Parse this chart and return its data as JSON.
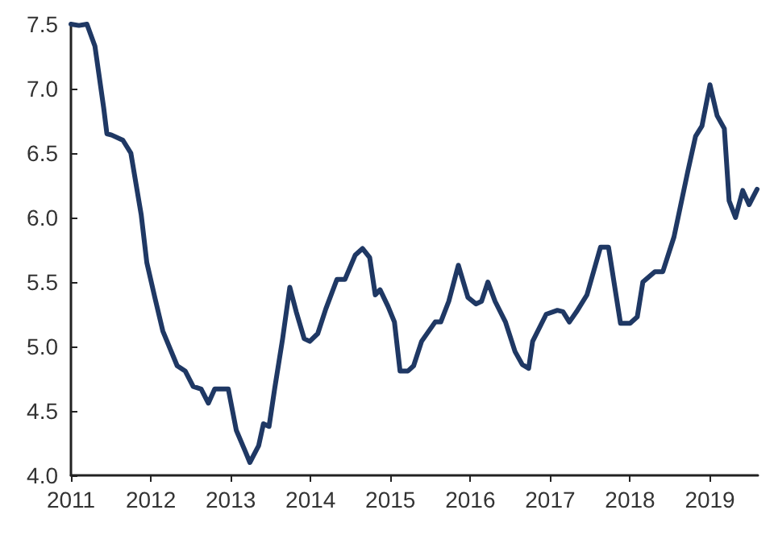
{
  "chart_data": {
    "type": "line",
    "xlim": [
      2011,
      2019.6
    ],
    "xticks": [
      2011,
      2012,
      2013,
      2014,
      2015,
      2016,
      2017,
      2018,
      2019
    ],
    "ylim": [
      4.0,
      7.5
    ],
    "yticks": [
      {
        "value": 4.0,
        "label": "4.0"
      },
      {
        "value": 4.5,
        "label": "4.5"
      },
      {
        "value": 5.0,
        "label": "5.0"
      },
      {
        "value": 5.5,
        "label": "5.5"
      },
      {
        "value": 6.0,
        "label": "6.0"
      },
      {
        "value": 6.5,
        "label": "6.5"
      },
      {
        "value": 7.0,
        "label": "7.0"
      },
      {
        "value": 7.5,
        "label": "7.5"
      }
    ],
    "grid": false,
    "marker": "none",
    "line_style": "solid",
    "series": [
      {
        "color": "#1f3864",
        "x": [
          2011.0,
          2011.1,
          2011.2,
          2011.3,
          2011.41,
          2011.45,
          2011.51,
          2011.65,
          2011.75,
          2011.88,
          2011.95,
          2012.05,
          2012.15,
          2012.33,
          2012.43,
          2012.53,
          2012.63,
          2012.72,
          2012.8,
          2012.97,
          2013.07,
          2013.18,
          2013.24,
          2013.35,
          2013.41,
          2013.48,
          2013.55,
          2013.65,
          2013.74,
          2013.82,
          2013.92,
          2013.99,
          2014.09,
          2014.19,
          2014.33,
          2014.43,
          2014.56,
          2014.65,
          2014.74,
          2014.81,
          2014.87,
          2014.97,
          2015.05,
          2015.12,
          2015.22,
          2015.29,
          2015.39,
          2015.56,
          2015.63,
          2015.73,
          2015.85,
          2015.97,
          2016.07,
          2016.14,
          2016.22,
          2016.31,
          2016.44,
          2016.56,
          2016.65,
          2016.73,
          2016.78,
          2016.95,
          2017.09,
          2017.16,
          2017.24,
          2017.33,
          2017.46,
          2017.63,
          2017.73,
          2017.88,
          2018.0,
          2018.09,
          2018.16,
          2018.31,
          2018.41,
          2018.55,
          2018.72,
          2018.82,
          2018.9,
          2019.0,
          2019.09,
          2019.18,
          2019.24,
          2019.32,
          2019.41,
          2019.49,
          2019.59
        ],
        "values": [
          7.5,
          7.49,
          7.5,
          7.33,
          6.85,
          6.65,
          6.64,
          6.6,
          6.5,
          6.02,
          5.65,
          5.38,
          5.12,
          4.85,
          4.81,
          4.69,
          4.67,
          4.56,
          4.67,
          4.67,
          4.35,
          4.19,
          4.1,
          4.23,
          4.4,
          4.38,
          4.67,
          5.06,
          5.46,
          5.27,
          5.06,
          5.04,
          5.1,
          5.29,
          5.52,
          5.52,
          5.71,
          5.76,
          5.69,
          5.4,
          5.44,
          5.31,
          5.19,
          4.81,
          4.81,
          4.85,
          5.04,
          5.19,
          5.19,
          5.35,
          5.63,
          5.38,
          5.33,
          5.35,
          5.5,
          5.35,
          5.19,
          4.96,
          4.86,
          4.83,
          5.04,
          5.25,
          5.28,
          5.27,
          5.19,
          5.27,
          5.4,
          5.77,
          5.77,
          5.18,
          5.18,
          5.23,
          5.5,
          5.58,
          5.58,
          5.85,
          6.35,
          6.63,
          6.71,
          7.03,
          6.79,
          6.69,
          6.13,
          6.0,
          6.21,
          6.1,
          6.22
        ]
      }
    ]
  }
}
